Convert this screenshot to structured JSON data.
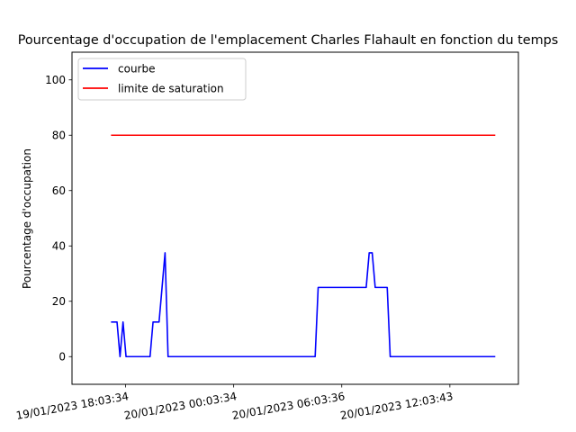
{
  "chart_data": {
    "type": "line",
    "title": "Pourcentage d'occupation de l'emplacement Charles Flahault en fonction du temps",
    "xlabel": "",
    "ylabel": "Pourcentage d'occupation",
    "ylim": [
      -10,
      110
    ],
    "xlim": [
      "2023-01-19T15:05:00",
      "2023-01-20T15:52:00"
    ],
    "y_ticks": [
      0,
      20,
      40,
      60,
      80,
      100
    ],
    "x_ticks": [
      {
        "t": "2023-01-19T18:03:34",
        "label": "19/01/2023 18:03:34"
      },
      {
        "t": "2023-01-20T00:03:34",
        "label": "20/01/2023 00:03:34"
      },
      {
        "t": "2023-01-20T06:03:36",
        "label": "20/01/2023 06:03:36"
      },
      {
        "t": "2023-01-20T12:03:43",
        "label": "20/01/2023 12:03:43"
      }
    ],
    "legend_position": "upper left",
    "grid": false,
    "series": [
      {
        "name": "courbe",
        "color": "#0000ff",
        "points": [
          {
            "t": "2023-01-19T17:15:00",
            "y": 12.5
          },
          {
            "t": "2023-01-19T17:35:00",
            "y": 12.5
          },
          {
            "t": "2023-01-19T17:45:00",
            "y": 0
          },
          {
            "t": "2023-01-19T17:55:00",
            "y": 12.5
          },
          {
            "t": "2023-01-19T18:05:00",
            "y": 0
          },
          {
            "t": "2023-01-19T19:25:00",
            "y": 0
          },
          {
            "t": "2023-01-19T19:35:00",
            "y": 12.5
          },
          {
            "t": "2023-01-19T19:55:00",
            "y": 12.5
          },
          {
            "t": "2023-01-19T20:05:00",
            "y": 25
          },
          {
            "t": "2023-01-19T20:15:00",
            "y": 37.5
          },
          {
            "t": "2023-01-19T20:25:00",
            "y": 0
          },
          {
            "t": "2023-01-20T04:35:00",
            "y": 0
          },
          {
            "t": "2023-01-20T04:45:00",
            "y": 25
          },
          {
            "t": "2023-01-20T07:25:00",
            "y": 25
          },
          {
            "t": "2023-01-20T07:35:00",
            "y": 37.5
          },
          {
            "t": "2023-01-20T07:45:00",
            "y": 37.5
          },
          {
            "t": "2023-01-20T07:55:00",
            "y": 25
          },
          {
            "t": "2023-01-20T08:35:00",
            "y": 25
          },
          {
            "t": "2023-01-20T08:45:00",
            "y": 0
          },
          {
            "t": "2023-01-20T14:35:00",
            "y": 0
          }
        ]
      },
      {
        "name": "limite de saturation",
        "color": "#ff0000",
        "points": [
          {
            "t": "2023-01-19T17:15:00",
            "y": 80
          },
          {
            "t": "2023-01-20T14:35:00",
            "y": 80
          }
        ]
      }
    ]
  }
}
